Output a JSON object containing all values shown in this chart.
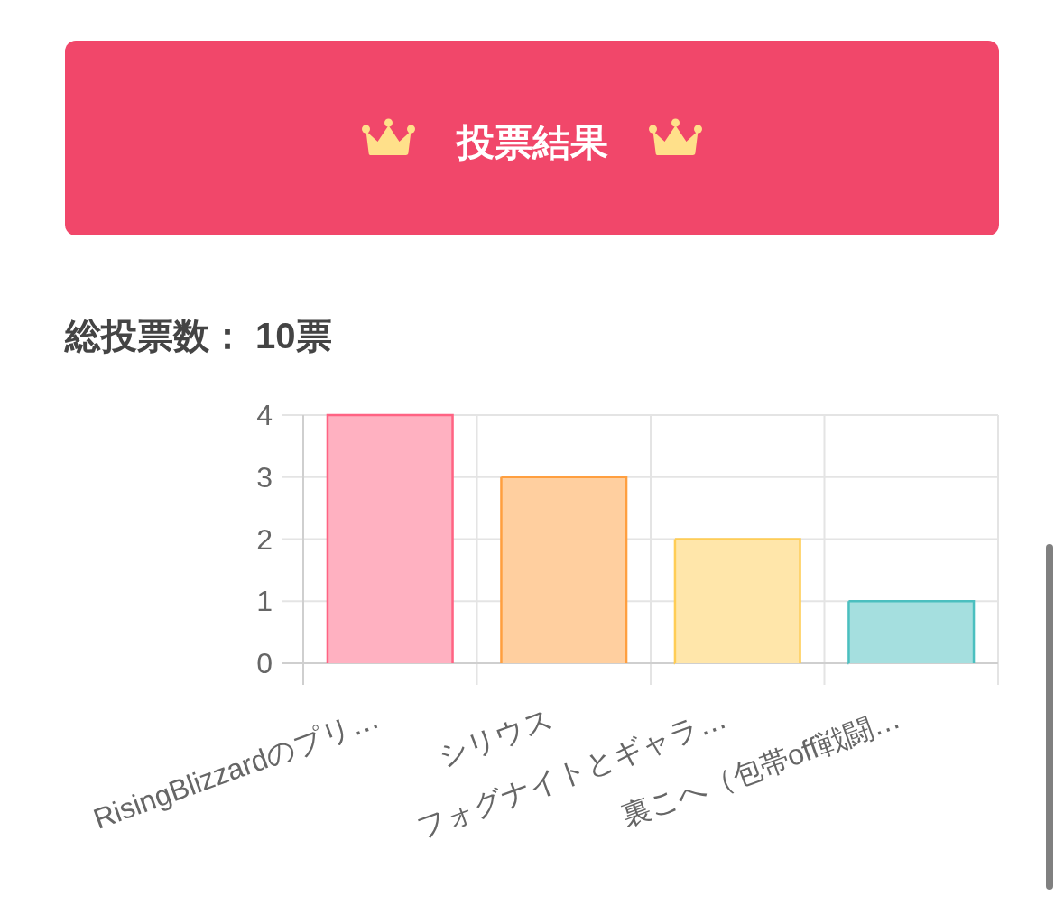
{
  "chart_data": {
    "type": "bar",
    "title": "投票結果",
    "subtitle": "総投票数： 10票",
    "categories": [
      "RisingBlizzardのプリ…",
      "シリウス",
      "フォグナイトとギャラ…",
      "裏こへ（包帯off戦闘…"
    ],
    "values": [
      4,
      3,
      2,
      1
    ],
    "colors": [
      "#ffb1c1",
      "#ffcf9f",
      "#ffe6aa",
      "#a5dfdf"
    ],
    "ylim": [
      0,
      4
    ],
    "yticks": [
      0,
      1,
      2,
      3,
      4
    ],
    "grid": true
  }
}
